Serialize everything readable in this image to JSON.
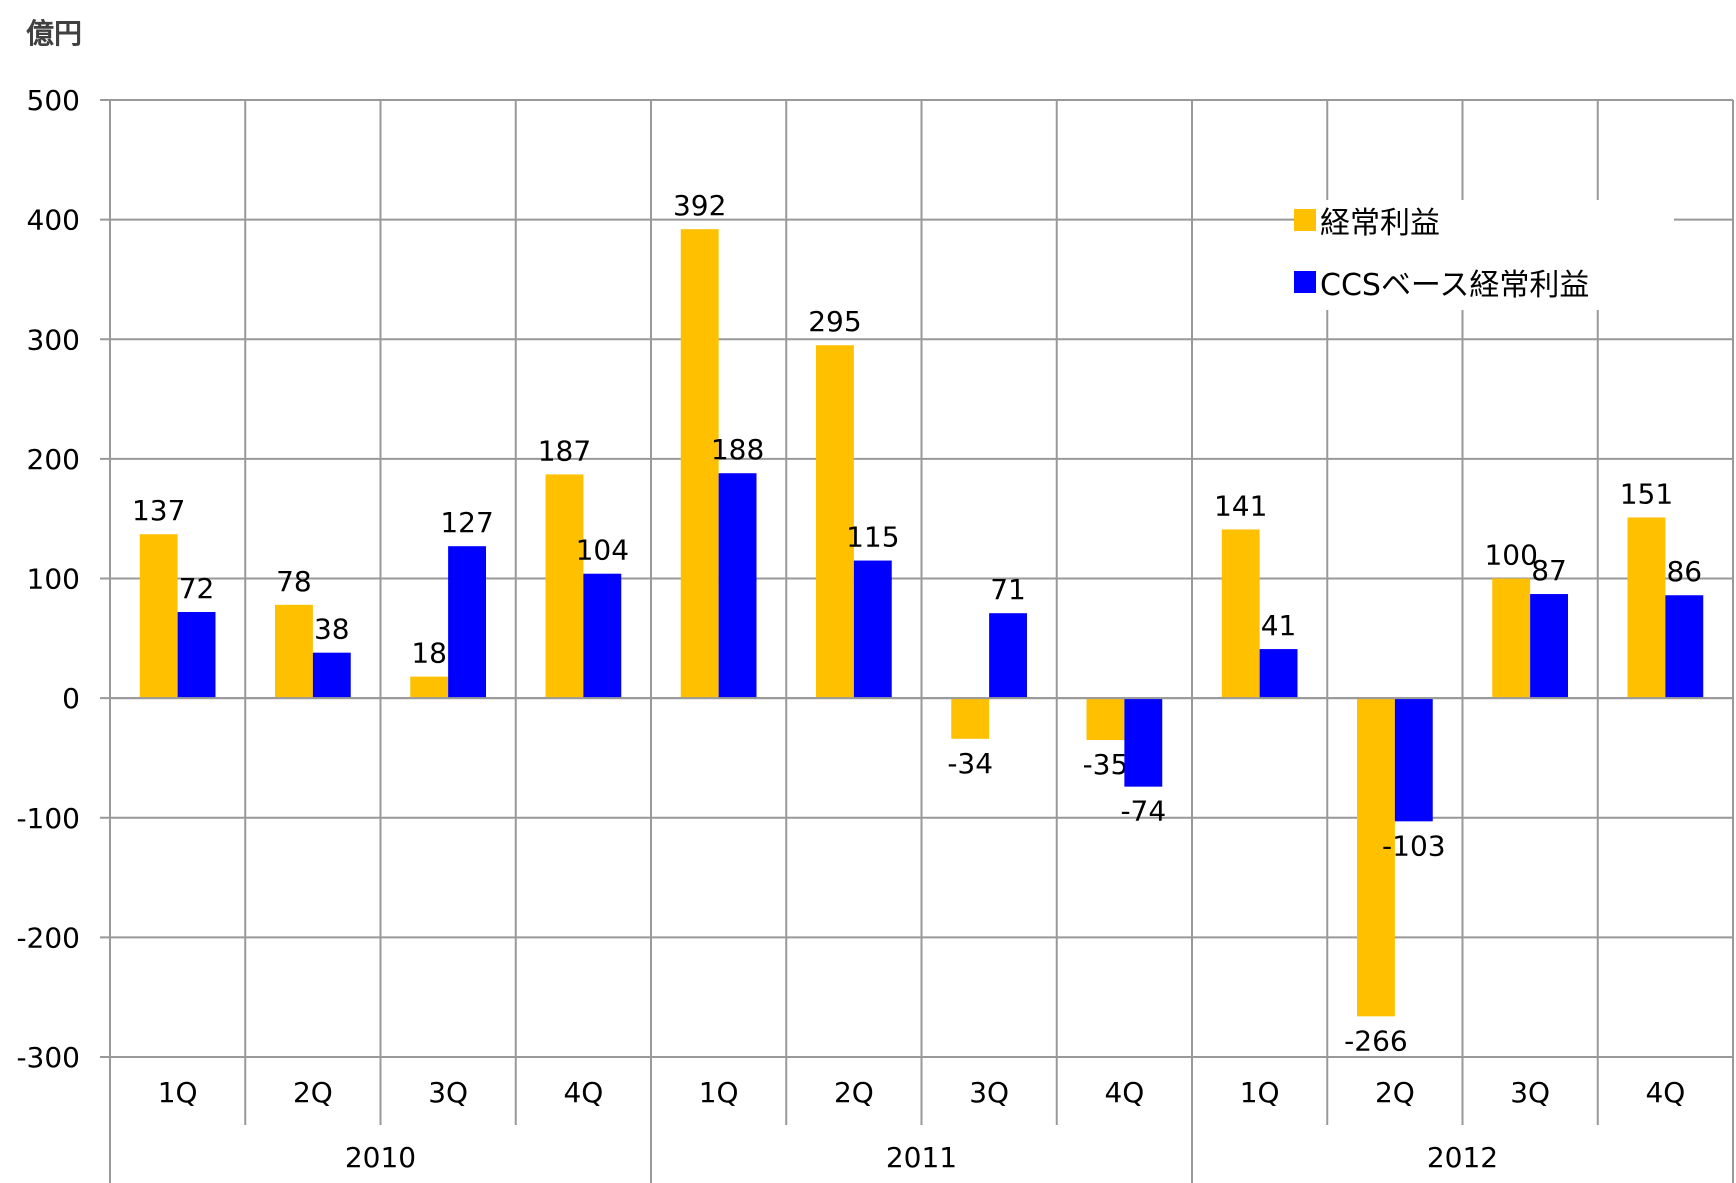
{
  "unit_label": "億円",
  "colors": {
    "series1": "#FFC000",
    "series2": "#0000FF",
    "grid": "#999999",
    "text": "#000000"
  },
  "chart_data": {
    "type": "bar",
    "ylim": [
      -300,
      500
    ],
    "yticks": [
      500,
      400,
      300,
      200,
      100,
      0,
      -100,
      -200,
      -300
    ],
    "grid": true,
    "legend_position": "top-right",
    "quarters": [
      "1Q",
      "2Q",
      "3Q",
      "4Q",
      "1Q",
      "2Q",
      "3Q",
      "4Q",
      "1Q",
      "2Q",
      "3Q",
      "4Q"
    ],
    "years": [
      {
        "label": "2010",
        "span": 4
      },
      {
        "label": "2011",
        "span": 4
      },
      {
        "label": "2012",
        "span": 4
      }
    ],
    "series": [
      {
        "name": "経常利益",
        "color": "#FFC000",
        "values": [
          137,
          78,
          18,
          187,
          392,
          295,
          -34,
          -35,
          141,
          -266,
          100,
          151
        ]
      },
      {
        "name": "CCSベース経常利益",
        "color": "#0000FF",
        "values": [
          72,
          38,
          127,
          104,
          188,
          115,
          71,
          -74,
          41,
          -103,
          87,
          86
        ]
      }
    ]
  }
}
